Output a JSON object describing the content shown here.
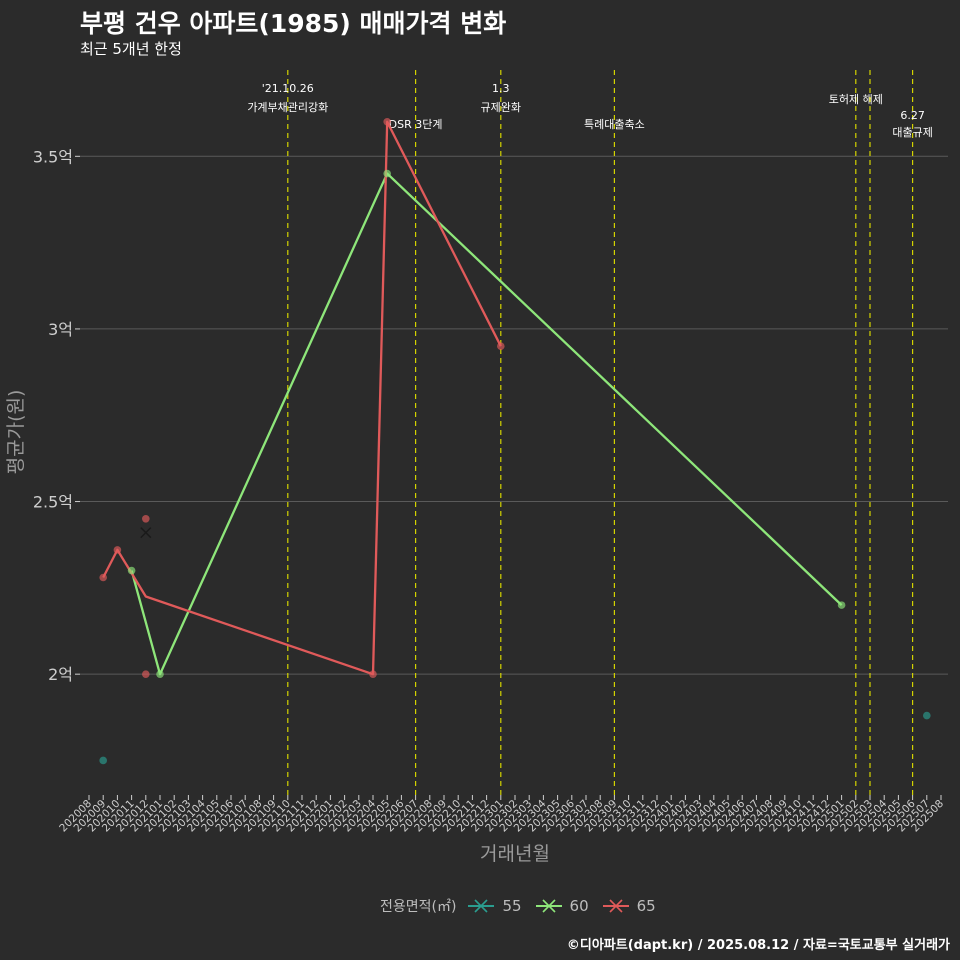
{
  "title": "부평 건우 아파트(1985) 매매가격 변화",
  "subtitle": "최근 5개년 한정",
  "footer": "©디아파트(dapt.kr) / 2025.08.12 / 자료=국토교통부 실거래가",
  "legend": {
    "title": "전용면적(㎡)"
  },
  "colors": {
    "background": "#2b2b2b",
    "grid": "#5a5a5a",
    "event_line": "#d4d400",
    "axis_text": "#cfcfcf",
    "axis_title": "#9a9a9a"
  },
  "chart_data": {
    "type": "line",
    "title": "부평 건우 아파트(1985) 매매가격 변화",
    "subtitle": "최근 5개년 한정",
    "xlabel": "거래년월",
    "ylabel": "평균가(원)",
    "x_categories": [
      "202008",
      "202009",
      "202010",
      "202011",
      "202012",
      "202101",
      "202102",
      "202103",
      "202104",
      "202105",
      "202106",
      "202107",
      "202108",
      "202109",
      "202110",
      "202111",
      "202112",
      "202201",
      "202202",
      "202203",
      "202204",
      "202205",
      "202206",
      "202207",
      "202208",
      "202209",
      "202210",
      "202211",
      "202212",
      "202301",
      "202302",
      "202303",
      "202304",
      "202305",
      "202306",
      "202307",
      "202308",
      "202309",
      "202310",
      "202311",
      "202312",
      "202401",
      "202402",
      "202403",
      "202404",
      "202405",
      "202406",
      "202407",
      "202408",
      "202409",
      "202410",
      "202411",
      "202412",
      "202501",
      "202502",
      "202503",
      "202504",
      "202505",
      "202506",
      "202507",
      "202508"
    ],
    "ylim": [
      1.65,
      3.75
    ],
    "y_ticks": [
      {
        "value": 2.0,
        "label": "2억"
      },
      {
        "value": 2.5,
        "label": "2.5억"
      },
      {
        "value": 3.0,
        "label": "3억"
      },
      {
        "value": 3.5,
        "label": "3.5억"
      }
    ],
    "grid": true,
    "legend_position": "bottom",
    "series": [
      {
        "name": "55",
        "color": "#2a9d8f",
        "points": [
          {
            "x": "202009",
            "y": 1.75
          },
          {
            "x": "202507",
            "y": 1.88
          }
        ],
        "line": []
      },
      {
        "name": "60",
        "color": "#8ee67a",
        "points": [
          {
            "x": "202011",
            "y": 2.3
          },
          {
            "x": "202101",
            "y": 2.0
          },
          {
            "x": "202205",
            "y": 3.45
          },
          {
            "x": "202501",
            "y": 2.2
          }
        ],
        "line": [
          {
            "x": "202011",
            "y": 2.3
          },
          {
            "x": "202101",
            "y": 2.0
          },
          {
            "x": "202205",
            "y": 3.45
          },
          {
            "x": "202501",
            "y": 2.2
          }
        ]
      },
      {
        "name": "65",
        "color": "#e05a5a",
        "points": [
          {
            "x": "202009",
            "y": 2.28
          },
          {
            "x": "202010",
            "y": 2.36
          },
          {
            "x": "202012",
            "y": 2.45
          },
          {
            "x": "202012",
            "y": 2.0
          },
          {
            "x": "202204",
            "y": 2.0
          },
          {
            "x": "202205",
            "y": 3.6
          },
          {
            "x": "202301",
            "y": 2.95
          }
        ],
        "line": [
          {
            "x": "202009",
            "y": 2.28
          },
          {
            "x": "202010",
            "y": 2.36
          },
          {
            "x": "202012",
            "y": 2.225
          },
          {
            "x": "202204",
            "y": 2.0
          },
          {
            "x": "202205",
            "y": 3.6
          },
          {
            "x": "202301",
            "y": 2.95
          }
        ],
        "marker_x": {
          "x": "202012",
          "y": 2.41
        }
      }
    ],
    "events": [
      {
        "x": "202110",
        "label": "'21.10.26\n가계부채관리강화",
        "label_level": "high"
      },
      {
        "x": "202207",
        "label": "DSR 3단계",
        "label_level": "low"
      },
      {
        "x": "202301",
        "label": "1.3\n규제완화",
        "label_level": "high"
      },
      {
        "x": "202309",
        "label": "특례대출축소",
        "label_level": "low"
      },
      {
        "x": "202502",
        "label": "토허제 해제",
        "label_level": "mid"
      },
      {
        "x": "202503",
        "label": "",
        "label_level": "none"
      },
      {
        "x": "202506",
        "label": "6.27\n대출규제",
        "label_level": "low2"
      }
    ]
  }
}
